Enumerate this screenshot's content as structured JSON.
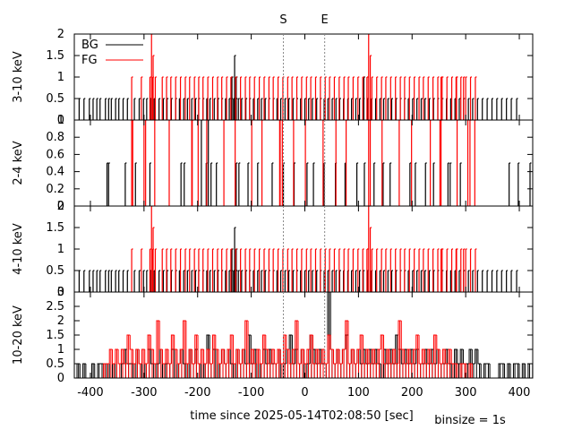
{
  "chart_data": {
    "type": "line",
    "xlabel": "time since 2025-05-14T02:08:50 [sec]",
    "binsize_text": "binsize = 1s",
    "xlim": [
      -430,
      425
    ],
    "xticks": [
      -400,
      -300,
      -200,
      -100,
      0,
      100,
      200,
      300,
      400
    ],
    "markers": [
      {
        "label": "S",
        "x": -40
      },
      {
        "label": "E",
        "x": 37
      }
    ],
    "legend": {
      "placement": "top-left",
      "entries": [
        {
          "name": "BG",
          "color": "#000000"
        },
        {
          "name": "FG",
          "color": "#ff0000"
        }
      ]
    },
    "panels": [
      {
        "ylabel": "3-10 keV",
        "ylim": [
          0,
          2
        ],
        "yticks": [
          0,
          0.5,
          1,
          1.5,
          2
        ],
        "bg_events": [
          -421,
          -412,
          -402,
          -395,
          -388,
          -382,
          -372,
          -366,
          -361,
          -353,
          -347,
          -339,
          -331,
          -318,
          -309,
          -301,
          -295,
          -288,
          -281,
          -272,
          -264,
          -257,
          -249,
          -241,
          -234,
          -226,
          -219,
          -211,
          -204,
          -198,
          -190,
          -183,
          -177,
          -169,
          -162,
          -155,
          -148,
          -141,
          -137,
          -133,
          -131,
          -128,
          -124,
          -118,
          -110,
          -103,
          -96,
          -88,
          -81,
          -74,
          -67,
          -59,
          -52,
          -45,
          -37,
          -30,
          -22,
          -15,
          -8,
          0,
          7,
          14,
          22,
          29,
          36,
          43,
          51,
          58,
          65,
          72,
          80,
          87,
          95,
          102,
          109,
          117,
          124,
          132,
          140,
          147,
          155,
          162,
          170,
          178,
          186,
          193,
          201,
          209,
          217,
          224,
          232,
          240,
          248,
          256,
          264,
          272,
          280,
          288,
          296,
          305,
          313,
          322,
          331,
          340,
          349,
          358,
          367,
          376,
          385,
          395
        ],
        "bg_high": [
          {
            "x": -131,
            "y": 1.5
          },
          {
            "x": -136,
            "y": 1
          },
          {
            "x": -128,
            "y": 1
          },
          {
            "x": 110,
            "y": 1
          }
        ],
        "fg_events": [
          -323,
          -305,
          -289,
          -284,
          -279,
          -266,
          -258,
          -250,
          -241,
          -232,
          -223,
          -215,
          -206,
          -198,
          -190,
          -181,
          -172,
          -163,
          -155,
          -146,
          -138,
          -129,
          -120,
          -111,
          -103,
          -94,
          -85,
          -76,
          -67,
          -59,
          -50,
          -41,
          -32,
          -24,
          -15,
          -6,
          3,
          11,
          20,
          29,
          38,
          46,
          55,
          64,
          73,
          81,
          90,
          99,
          108,
          116,
          125,
          134,
          143,
          151,
          160,
          169,
          178,
          186,
          195,
          204,
          213,
          221,
          230,
          239,
          248,
          256,
          265,
          274,
          283,
          291,
          300,
          309,
          318
        ],
        "fg_high": [
          {
            "x": -286,
            "y": 2
          },
          {
            "x": -283,
            "y": 1.5
          },
          {
            "x": 119,
            "y": 2
          },
          {
            "x": 122,
            "y": 1.5
          },
          {
            "x": 116,
            "y": 1
          },
          {
            "x": 254,
            "y": 1
          },
          {
            "x": 282,
            "y": 1
          },
          {
            "x": 296,
            "y": 1
          }
        ]
      },
      {
        "ylabel": "2-4 keV",
        "ylim": [
          0,
          1
        ],
        "yticks": [
          0,
          0.2,
          0.4,
          0.6,
          0.8
        ],
        "top_tick_label": "1",
        "bg_events": [
          -369,
          -366,
          -335,
          -316,
          -289,
          -231,
          -225,
          -184,
          -175,
          -165,
          -128,
          -123,
          -106,
          -88,
          -61,
          -40,
          -20,
          4,
          16,
          36,
          57,
          75,
          97,
          111,
          129,
          146,
          159,
          196,
          206,
          225,
          240,
          267,
          271,
          290,
          381,
          398,
          420
        ],
        "bg_full": [
          -193,
          -180
        ],
        "fg_events": [
          -321,
          -300,
          -280,
          -253,
          -210,
          -199,
          -151,
          -130,
          -99,
          -80,
          -47,
          -42,
          -21,
          1,
          34,
          58,
          77,
          122,
          144,
          176,
          199,
          234,
          252,
          284,
          317
        ],
        "fg_full": [
          -323,
          -297,
          -211,
          -183,
          -46,
          119,
          254,
          304,
          308
        ]
      },
      {
        "ylabel": "4-10 keV",
        "ylim": [
          0,
          2
        ],
        "yticks": [
          0,
          0.5,
          1,
          1.5,
          2
        ],
        "bg_events": [
          -421,
          -412,
          -402,
          -395,
          -388,
          -382,
          -372,
          -366,
          -361,
          -353,
          -347,
          -339,
          -331,
          -318,
          -309,
          -301,
          -295,
          -288,
          -281,
          -272,
          -264,
          -257,
          -249,
          -241,
          -234,
          -226,
          -219,
          -211,
          -204,
          -198,
          -190,
          -183,
          -177,
          -169,
          -162,
          -155,
          -148,
          -141,
          -137,
          -133,
          -131,
          -128,
          -124,
          -118,
          -110,
          -103,
          -96,
          -88,
          -81,
          -74,
          -67,
          -59,
          -52,
          -45,
          -37,
          -30,
          -22,
          -15,
          -8,
          0,
          7,
          14,
          22,
          29,
          36,
          43,
          51,
          58,
          65,
          72,
          80,
          87,
          95,
          102,
          109,
          117,
          124,
          132,
          140,
          147,
          155,
          162,
          170,
          178,
          186,
          193,
          201,
          209,
          217,
          224,
          232,
          240,
          248,
          256,
          264,
          272,
          280,
          288,
          296,
          305,
          313,
          322,
          331,
          340,
          349,
          358,
          367,
          376,
          385,
          395
        ],
        "bg_high": [
          {
            "x": -131,
            "y": 1.5
          },
          {
            "x": -136,
            "y": 1
          },
          {
            "x": -128,
            "y": 1
          }
        ],
        "fg_events": [
          -323,
          -305,
          -289,
          -284,
          -279,
          -266,
          -258,
          -250,
          -241,
          -232,
          -223,
          -215,
          -206,
          -198,
          -190,
          -181,
          -172,
          -163,
          -155,
          -146,
          -138,
          -129,
          -120,
          -111,
          -103,
          -94,
          -85,
          -76,
          -67,
          -59,
          -50,
          -41,
          -32,
          -24,
          -15,
          -6,
          3,
          11,
          20,
          29,
          38,
          46,
          55,
          64,
          73,
          81,
          90,
          99,
          108,
          116,
          125,
          134,
          143,
          151,
          160,
          169,
          178,
          186,
          195,
          204,
          213,
          221,
          230,
          239,
          248,
          256,
          265,
          274,
          283,
          291,
          300,
          309,
          318
        ],
        "fg_high": [
          {
            "x": -286,
            "y": 2
          },
          {
            "x": -283,
            "y": 1.5
          },
          {
            "x": 119,
            "y": 2
          },
          {
            "x": 122,
            "y": 1.5
          },
          {
            "x": 116,
            "y": 1
          },
          {
            "x": 254,
            "y": 1
          },
          {
            "x": 282,
            "y": 1
          },
          {
            "x": 296,
            "y": 1
          }
        ]
      },
      {
        "ylabel": "10-20 keV",
        "ylim": [
          0,
          3
        ],
        "yticks": [
          0,
          0.5,
          1,
          1.5,
          2,
          2.5
        ],
        "top_tick_label": "3",
        "bg_step": [
          0.5,
          0,
          0.5,
          0,
          0,
          0.5,
          0,
          0.5,
          0.5,
          0,
          0.5,
          0,
          0.5,
          0,
          0,
          0.5,
          1,
          0.5,
          0.5,
          0,
          1,
          0.5,
          0,
          0.5,
          1,
          0.5,
          0,
          0.5,
          1,
          0,
          0.5,
          0.5,
          1,
          0,
          0.5,
          1,
          0.5,
          0,
          1,
          0.5,
          1,
          0.5,
          0,
          0.5,
          1.5,
          0.5,
          1,
          0,
          0.5,
          1,
          0.5,
          1,
          0.5,
          0,
          1,
          0.5,
          1,
          0.5,
          1.5,
          0.5,
          1,
          0,
          0.5,
          1,
          0.5,
          1,
          0.5,
          0.5,
          1,
          0,
          0.5,
          1,
          1.5,
          0.5,
          1,
          0.5,
          1,
          0,
          0.5,
          1.5,
          1,
          0.5,
          1,
          0.5,
          0.5,
          3,
          1,
          0.5,
          1,
          0.5,
          1,
          1.5,
          0.5,
          1,
          0.5,
          1,
          0.5,
          1,
          0.5,
          1,
          0.5,
          1,
          0.5,
          0,
          1,
          0.5,
          1,
          0.5,
          1.5,
          1,
          0.5,
          1,
          0.5,
          1,
          0.5,
          1,
          0.5,
          0.5,
          1,
          0.5,
          1,
          0.5,
          1,
          0.5,
          0.5,
          1,
          0.5,
          0,
          1,
          0.5,
          1,
          0.5,
          0.5,
          1,
          0.5,
          1,
          0.5,
          0,
          0.5,
          0.5,
          0,
          0,
          0,
          0.5,
          0.5,
          0,
          0.5,
          0,
          0.5,
          0.5,
          0,
          0.5,
          0,
          0.5,
          0.5
        ],
        "fg_step": [
          0,
          0,
          0,
          0,
          0,
          0,
          0,
          0,
          0,
          0.5,
          0.5,
          1,
          0.5,
          1,
          0.5,
          1,
          0.5,
          1.5,
          1,
          0.5,
          1,
          0.5,
          1,
          0.5,
          1.5,
          1,
          0.5,
          2,
          1,
          0.5,
          1,
          0.5,
          1.5,
          1,
          0.5,
          1,
          2,
          0.5,
          1,
          0.5,
          1.5,
          0.5,
          1,
          0.5,
          1,
          0.5,
          1.5,
          1,
          0.5,
          1,
          0.5,
          1,
          1.5,
          0.5,
          1,
          0.5,
          1,
          2,
          0.5,
          1,
          0.5,
          1,
          0.5,
          1.5,
          1,
          0.5,
          1,
          0.5,
          1,
          0.5,
          1.5,
          1,
          0.5,
          1,
          2,
          0.5,
          1,
          0.5,
          1,
          1.5,
          0.5,
          1,
          0.5,
          1,
          0.5,
          1.5,
          1,
          0.5,
          1,
          0.5,
          1,
          2,
          0.5,
          1,
          0.5,
          1,
          1.5,
          0.5,
          1,
          0.5,
          1,
          0.5,
          1,
          1.5,
          0.5,
          1,
          0.5,
          1,
          0.5,
          2,
          1,
          0.5,
          1,
          0.5,
          1,
          1.5,
          0.5,
          1,
          0.5,
          1,
          0.5,
          1.5,
          1,
          0.5,
          1,
          0.5,
          1,
          0.5,
          0.5,
          0,
          0.5,
          0.5,
          0,
          0.5,
          0,
          0,
          0,
          0,
          0,
          0,
          0,
          0,
          0,
          0,
          0,
          0,
          0,
          0,
          0,
          0,
          0,
          0,
          0
        ],
        "step_x0": -425,
        "step_dx": 5.5
      }
    ]
  }
}
